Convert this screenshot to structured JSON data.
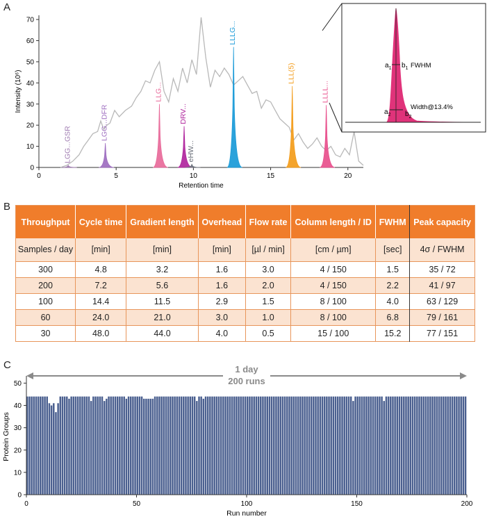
{
  "panels": {
    "a": "A",
    "b": "B",
    "c": "C"
  },
  "chart_data": [
    {
      "type": "line",
      "title": "",
      "xlabel": "Retention time",
      "ylabel": "Intensity (10⁶)",
      "xlim": [
        0,
        21
      ],
      "ylim": [
        0,
        72
      ],
      "xticks": [
        0,
        5,
        10,
        15,
        20
      ],
      "yticks": [
        0,
        10,
        20,
        30,
        40,
        50,
        60,
        70
      ],
      "background_trace_color": "#b8b8b8",
      "series": [
        {
          "name": "TIC",
          "color": "#b8b8b8",
          "x": [
            1.4,
            1.8,
            2.2,
            2.6,
            2.9,
            3.2,
            3.5,
            3.8,
            4.0,
            4.2,
            4.4,
            4.6,
            4.9,
            5.2,
            5.6,
            6.0,
            6.3,
            6.6,
            6.9,
            7.2,
            7.5,
            7.8,
            8.1,
            8.4,
            8.7,
            9.0,
            9.3,
            9.6,
            9.9,
            10.2,
            10.5,
            10.8,
            11.1,
            11.4,
            11.7,
            12.0,
            12.3,
            12.6,
            12.9,
            13.2,
            13.5,
            13.8,
            14.1,
            14.4,
            14.7,
            15.0,
            15.3,
            15.6,
            15.9,
            16.2,
            16.5,
            16.8,
            17.1,
            17.4,
            17.7,
            18.0,
            18.3,
            18.6,
            18.9,
            19.2,
            19.5,
            19.8,
            20.1,
            20.4,
            20.7,
            21.0
          ],
          "y": [
            0,
            1,
            3,
            6,
            10,
            13,
            16,
            17,
            22,
            18,
            20,
            21,
            27,
            24,
            27,
            29,
            33,
            36,
            41,
            40,
            46,
            50,
            36,
            31,
            42,
            36,
            47,
            40,
            51,
            44,
            71,
            52,
            38,
            46,
            43,
            47,
            44,
            39,
            41,
            43,
            39,
            35,
            36,
            28,
            32,
            31,
            27,
            23,
            21,
            19,
            13,
            16,
            12,
            9,
            11,
            14,
            10,
            8,
            10,
            6,
            5,
            9,
            6,
            17,
            3,
            1
          ]
        },
        {
          "name": "LGG...GSR",
          "color": "#9e7ab0",
          "peak_x": 1.9,
          "peak_y": 1
        },
        {
          "name": "LGG...DFR",
          "color": "#9e6ec0",
          "peak_x": 4.3,
          "peak_y": 11.5
        },
        {
          "name": "LLG...",
          "color": "#e86a9a",
          "peak_x": 7.8,
          "peak_y": 30
        },
        {
          "name": "DRV...",
          "color": "#b0259d",
          "peak_x": 9.4,
          "peak_y": 19.5
        },
        {
          "name": "eHW...",
          "color": "#6a6f7a",
          "peak_x": 9.9,
          "peak_y": 1.5
        },
        {
          "name": "LLLG...",
          "color": "#199ad8",
          "peak_x": 12.6,
          "peak_y": 57
        },
        {
          "name": "LLL(5)",
          "color": "#f39c1a",
          "peak_x": 16.4,
          "peak_y": 38.5
        },
        {
          "name": "LLLL...",
          "color": "#e84f8c",
          "peak_x": 18.6,
          "peak_y": 29.5
        }
      ],
      "inset": {
        "annotations": [
          "a",
          "b",
          "FWHM",
          "Width@13.4%"
        ],
        "subscripts": [
          "1",
          "1",
          "2",
          "2"
        ],
        "peak_color": "#e0337a"
      }
    },
    {
      "type": "table",
      "header": [
        "Throughput",
        "Cycle time",
        "Gradient length",
        "Overhead",
        "Flow rate",
        "Column length / ID",
        "FWHM",
        "Peak capacity"
      ],
      "units": [
        "Samples / day",
        "[min]",
        "[min]",
        "[min]",
        "[µl / min]",
        "[cm / µm]",
        "[sec]",
        "4σ / FWHM"
      ],
      "rows": [
        [
          "300",
          "4.8",
          "3.2",
          "1.6",
          "3.0",
          "4 / 150",
          "1.5",
          "35 / 72"
        ],
        [
          "200",
          "7.2",
          "5.6",
          "1.6",
          "2.0",
          "4 / 150",
          "2.2",
          "41 / 97"
        ],
        [
          "100",
          "14.4",
          "11.5",
          "2.9",
          "1.5",
          "8 / 100",
          "4.0",
          "63 / 129"
        ],
        [
          "60",
          "24.0",
          "21.0",
          "3.0",
          "1.0",
          "8 / 100",
          "6.8",
          "79 / 161"
        ],
        [
          "30",
          "48.0",
          "44.0",
          "4.0",
          "0.5",
          "15 / 100",
          "15.2",
          "77 / 151"
        ]
      ]
    },
    {
      "type": "bar",
      "title": "",
      "xlabel": "Run number",
      "ylabel": "Protein Groups",
      "xlim": [
        0,
        200
      ],
      "ylim": [
        0,
        52
      ],
      "xticks": [
        0,
        50,
        100,
        150,
        200
      ],
      "yticks": [
        0,
        10,
        20,
        30,
        40,
        50
      ],
      "bar_color": "#4a5f8f",
      "annotation_line1": "1 day",
      "annotation_line2": "200 runs",
      "values": [
        44,
        44,
        44,
        44,
        44,
        44,
        44,
        44,
        44,
        44,
        41,
        40,
        41,
        37,
        41,
        44,
        44,
        44,
        44,
        43,
        44,
        44,
        44,
        44,
        44,
        44,
        44,
        44,
        44,
        42,
        44,
        44,
        44,
        44,
        44,
        42,
        43,
        44,
        44,
        44,
        44,
        44,
        44,
        44,
        44,
        43,
        44,
        44,
        44,
        44,
        44,
        44,
        44,
        43,
        43,
        43,
        43,
        43,
        44,
        44,
        44,
        44,
        44,
        44,
        44,
        44,
        44,
        44,
        44,
        44,
        44,
        44,
        44,
        44,
        44,
        44,
        44,
        42,
        44,
        44,
        43,
        44,
        44,
        44,
        44,
        44,
        44,
        44,
        44,
        44,
        44,
        44,
        44,
        44,
        44,
        44,
        44,
        44,
        44,
        44,
        44,
        44,
        44,
        44,
        44,
        44,
        44,
        44,
        44,
        44,
        44,
        44,
        44,
        44,
        44,
        44,
        44,
        44,
        44,
        44,
        44,
        44,
        44,
        44,
        44,
        44,
        44,
        44,
        44,
        44,
        44,
        44,
        44,
        44,
        44,
        44,
        44,
        44,
        44,
        44,
        44,
        44,
        44,
        44,
        44,
        44,
        44,
        44,
        42,
        44,
        44,
        44,
        44,
        44,
        44,
        44,
        44,
        44,
        44,
        44,
        44,
        44,
        42,
        44,
        44,
        44,
        44,
        44,
        44,
        44,
        44,
        44,
        44,
        44,
        44,
        44,
        44,
        44,
        44,
        44,
        44,
        44,
        44,
        44,
        44,
        44,
        44,
        44,
        44,
        44,
        44,
        44,
        44,
        44,
        44,
        44,
        44,
        44,
        44,
        44
      ]
    }
  ]
}
